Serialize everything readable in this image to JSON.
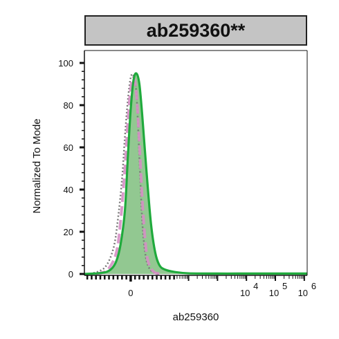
{
  "chart_data": {
    "type": "area",
    "title": "ab259360**",
    "xlabel": "ab259360",
    "ylabel": "Normalized To Mode",
    "ylim": [
      0,
      100
    ],
    "y_ticks": [
      "0",
      "20",
      "40",
      "60",
      "80",
      "100"
    ],
    "x_ticks": [
      {
        "label": "0",
        "pos": 0.0
      },
      {
        "base": "10",
        "exp": "4",
        "pos": 4.0
      },
      {
        "base": "10",
        "exp": "5",
        "pos": 5.0
      },
      {
        "base": "10",
        "exp": "6",
        "pos": 6.0
      }
    ],
    "x_scale": "biexponential",
    "xlim": [
      -1.6,
      6.1
    ],
    "series": [
      {
        "style": "dotted",
        "color": "#777777",
        "x": [
          -1.4,
          -0.9,
          -0.6,
          -0.45,
          -0.3,
          -0.2,
          -0.1,
          0.0,
          0.1,
          0.2,
          0.3,
          0.4,
          0.5,
          0.6,
          0.75,
          1.0
        ],
        "y": [
          0,
          3,
          12,
          25,
          45,
          65,
          82,
          93,
          94,
          85,
          55,
          25,
          10,
          4,
          1,
          0
        ]
      },
      {
        "style": "dashed",
        "color": "#d58fc4",
        "x": [
          -1.2,
          -0.8,
          -0.5,
          -0.35,
          -0.2,
          -0.1,
          0.0,
          0.1,
          0.2,
          0.3,
          0.4,
          0.5,
          0.6,
          0.8,
          1.1
        ],
        "y": [
          0,
          2,
          10,
          25,
          50,
          72,
          88,
          93,
          85,
          62,
          35,
          16,
          6,
          1,
          0
        ]
      },
      {
        "style": "filled",
        "color": "#1faa3c",
        "fill": "#8cc58b",
        "x": [
          -1.6,
          -1.0,
          -0.7,
          -0.5,
          -0.35,
          -0.2,
          -0.1,
          0.0,
          0.1,
          0.2,
          0.3,
          0.4,
          0.55,
          0.7,
          0.85,
          1.0,
          1.2,
          1.5,
          2.0,
          3.0,
          4.0,
          5.0,
          6.1
        ],
        "y": [
          0,
          0.5,
          2,
          6,
          14,
          30,
          55,
          78,
          92,
          95,
          90,
          75,
          48,
          24,
          10,
          4,
          2,
          1,
          0.3,
          0.2,
          0.2,
          0.2,
          0.2
        ]
      }
    ]
  }
}
